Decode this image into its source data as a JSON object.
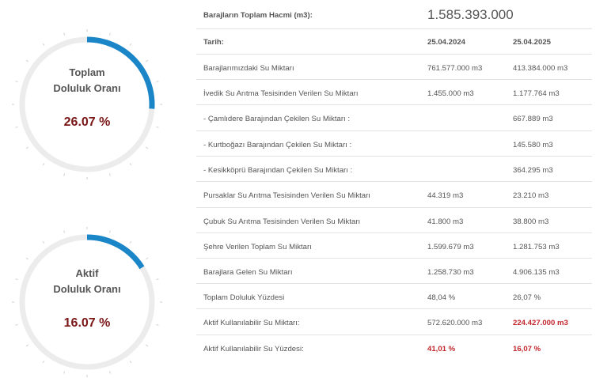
{
  "gauges": [
    {
      "title_line1": "Toplam",
      "title_line2": "Doluluk Oranı",
      "value_text": "26.07 %",
      "percent": 26.07,
      "fill_color": "#1a86c8",
      "track_color": "#ececec",
      "value_color": "#7a1616"
    },
    {
      "title_line1": "Aktif",
      "title_line2": "Doluluk Oranı",
      "value_text": "16.07 %",
      "percent": 16.07,
      "fill_color": "#1a86c8",
      "track_color": "#ececec",
      "value_color": "#7a1616"
    }
  ],
  "table": {
    "total_label": "Barajların Toplam Hacmi (m3):",
    "total_value": "1.585.393.000",
    "header": {
      "label": "Tarih:",
      "col_2024": "25.04.2024",
      "col_2025": "25.04.2025"
    },
    "rows": [
      {
        "label": "Barajlarımızdaki Su Miktarı",
        "v2024": "761.577.000 m3",
        "v2025": "413.384.000 m3"
      },
      {
        "label": "İvedik Su Arıtma Tesisinden Verilen Su Miktarı",
        "v2024": "1.455.000 m3",
        "v2025": "1.177.764 m3"
      },
      {
        "label": "- Çamlıdere Barajından Çekilen Su Miktarı :",
        "v2024": "",
        "v2025": "667.889 m3"
      },
      {
        "label": "- Kurtboğazı Barajından Çekilen Su Miktarı :",
        "v2024": "",
        "v2025": "145.580 m3"
      },
      {
        "label": "- Kesikköprü Barajından Çekilen Su Miktarı :",
        "v2024": "",
        "v2025": "364.295 m3"
      },
      {
        "label": "Pursaklar Su Arıtma Tesisinden Verilen Su Miktarı",
        "v2024": "44.319 m3",
        "v2025": "23.210 m3"
      },
      {
        "label": "Çubuk Su Arıtma Tesisinden Verilen Su Miktarı",
        "v2024": "41.800 m3",
        "v2025": "38.800 m3"
      },
      {
        "label": "Şehre Verilen Toplam Su Miktarı",
        "v2024": "1.599.679 m3",
        "v2025": "1.281.753 m3"
      },
      {
        "label": "Barajlara Gelen Su Miktarı",
        "v2024": "1.258.730 m3",
        "v2025": "4.906.135 m3"
      },
      {
        "label": "Toplam Doluluk Yüzdesi",
        "v2024": "48,04 %",
        "v2025": "26,07 %"
      },
      {
        "label": "Aktif Kullanılabilir Su Miktarı:",
        "v2024": "572.620.000 m3",
        "v2025": "224.427.000 m3"
      },
      {
        "label": "Aktif Kullanılabilir Su Yüzdesi:",
        "v2024": "41,01 %",
        "v2025": "16,07 %"
      }
    ],
    "highlight_color": "#c0262c"
  }
}
